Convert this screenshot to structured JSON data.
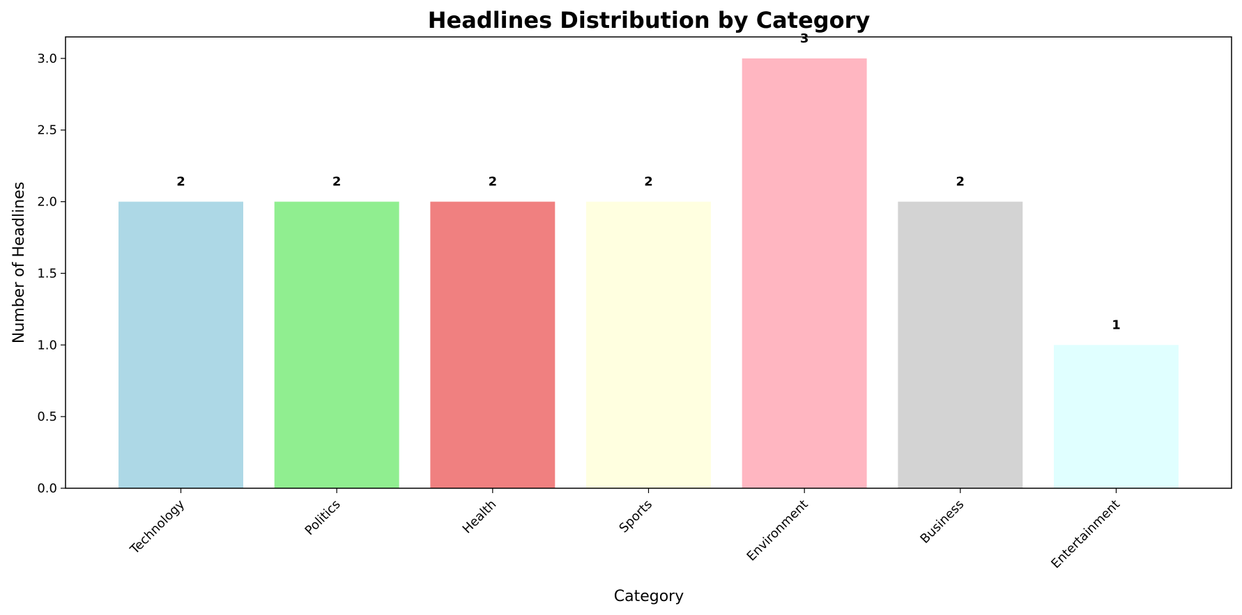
{
  "chart_data": {
    "type": "bar",
    "title": "Headlines Distribution by Category",
    "xlabel": "Category",
    "ylabel": "Number of Headlines",
    "categories": [
      "Technology",
      "Politics",
      "Health",
      "Sports",
      "Environment",
      "Business",
      "Entertainment"
    ],
    "values": [
      2,
      2,
      2,
      2,
      3,
      2,
      1
    ],
    "data_labels": [
      "2",
      "2",
      "2",
      "2",
      "3",
      "2",
      "1"
    ],
    "colors": [
      "#add8e6",
      "#90ee90",
      "#f08080",
      "#ffffe0",
      "#ffb6c1",
      "#d3d3d3",
      "#e0ffff"
    ],
    "ylim": [
      0,
      3.15
    ],
    "yticks": [
      0.0,
      0.5,
      1.0,
      1.5,
      2.0,
      2.5,
      3.0
    ],
    "ytick_labels": [
      "0.0",
      "0.5",
      "1.0",
      "1.5",
      "2.0",
      "2.5",
      "3.0"
    ],
    "grid": false,
    "legend": "none"
  }
}
